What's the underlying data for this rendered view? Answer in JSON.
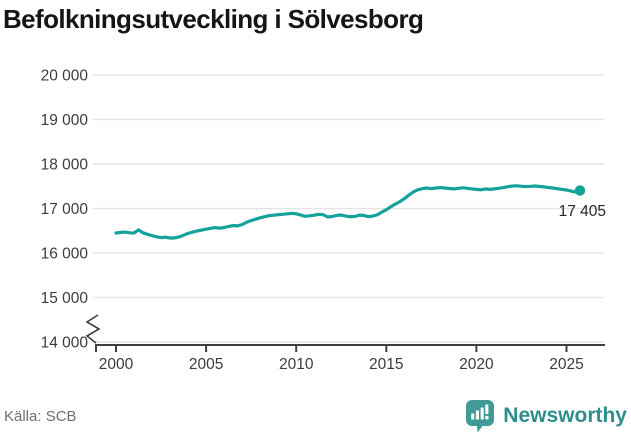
{
  "title": "Befolkningsutveckling i Sölvesborg",
  "source": "Källa: SCB",
  "logo": {
    "name": "Newsworthy",
    "icon": "newsworthy-speech-bubble-bars-icon"
  },
  "colors": {
    "line": "#14a29a",
    "marker": "#14a29a",
    "grid": "#e4e4e4",
    "axis": "#3f3f3f",
    "tick_label": "#3c3c3c",
    "annotation": "#262626",
    "title": "#151515",
    "source_text": "#6f6f6f",
    "logo_icon": "#419a98",
    "logo_text": "#2e8e8c"
  },
  "chart_data": {
    "type": "line",
    "title": "Befolkningsutveckling i Sölvesborg",
    "xlabel": "",
    "ylabel": "",
    "grid": "horizontal",
    "axis_break_bottom": true,
    "ylim": [
      14000,
      20000
    ],
    "xlim": [
      1998.7,
      2027.2
    ],
    "y_axis": {
      "ticks": [
        14000,
        15000,
        16000,
        17000,
        18000,
        19000,
        20000
      ],
      "labels": [
        "14 000",
        "15 000",
        "16 000",
        "17 000",
        "18 000",
        "19 000",
        "20 000"
      ]
    },
    "x_axis": {
      "ticks": [
        2000,
        2005,
        2010,
        2015,
        2020,
        2025
      ],
      "labels": [
        "2000",
        "2005",
        "2010",
        "2015",
        "2020",
        "2025"
      ]
    },
    "annotation": {
      "text": "17 405",
      "year": 2025.75,
      "value": 17405
    },
    "series": [
      {
        "name": "Befolkning",
        "points": [
          [
            2000.0,
            16450
          ],
          [
            2000.25,
            16460
          ],
          [
            2000.5,
            16470
          ],
          [
            2000.75,
            16455
          ],
          [
            2001.0,
            16450
          ],
          [
            2001.25,
            16520
          ],
          [
            2001.5,
            16455
          ],
          [
            2001.75,
            16420
          ],
          [
            2002.0,
            16390
          ],
          [
            2002.25,
            16365
          ],
          [
            2002.5,
            16345
          ],
          [
            2002.75,
            16355
          ],
          [
            2003.0,
            16335
          ],
          [
            2003.25,
            16340
          ],
          [
            2003.5,
            16360
          ],
          [
            2003.75,
            16400
          ],
          [
            2004.0,
            16440
          ],
          [
            2004.25,
            16470
          ],
          [
            2004.5,
            16495
          ],
          [
            2004.75,
            16515
          ],
          [
            2005.0,
            16535
          ],
          [
            2005.25,
            16555
          ],
          [
            2005.5,
            16570
          ],
          [
            2005.75,
            16560
          ],
          [
            2006.0,
            16570
          ],
          [
            2006.25,
            16595
          ],
          [
            2006.5,
            16615
          ],
          [
            2006.75,
            16610
          ],
          [
            2007.0,
            16640
          ],
          [
            2007.25,
            16690
          ],
          [
            2007.5,
            16730
          ],
          [
            2007.75,
            16760
          ],
          [
            2008.0,
            16790
          ],
          [
            2008.25,
            16815
          ],
          [
            2008.5,
            16840
          ],
          [
            2008.75,
            16850
          ],
          [
            2009.0,
            16860
          ],
          [
            2009.25,
            16870
          ],
          [
            2009.5,
            16880
          ],
          [
            2009.75,
            16890
          ],
          [
            2010.0,
            16880
          ],
          [
            2010.25,
            16855
          ],
          [
            2010.5,
            16825
          ],
          [
            2010.75,
            16835
          ],
          [
            2011.0,
            16850
          ],
          [
            2011.25,
            16870
          ],
          [
            2011.5,
            16860
          ],
          [
            2011.75,
            16810
          ],
          [
            2012.0,
            16820
          ],
          [
            2012.25,
            16845
          ],
          [
            2012.5,
            16855
          ],
          [
            2012.75,
            16830
          ],
          [
            2013.0,
            16815
          ],
          [
            2013.25,
            16820
          ],
          [
            2013.5,
            16850
          ],
          [
            2013.75,
            16845
          ],
          [
            2014.0,
            16815
          ],
          [
            2014.25,
            16830
          ],
          [
            2014.5,
            16860
          ],
          [
            2014.75,
            16920
          ],
          [
            2015.0,
            16970
          ],
          [
            2015.25,
            17040
          ],
          [
            2015.5,
            17100
          ],
          [
            2015.75,
            17155
          ],
          [
            2016.0,
            17220
          ],
          [
            2016.25,
            17300
          ],
          [
            2016.5,
            17370
          ],
          [
            2016.75,
            17420
          ],
          [
            2017.0,
            17445
          ],
          [
            2017.25,
            17460
          ],
          [
            2017.5,
            17445
          ],
          [
            2017.75,
            17460
          ],
          [
            2018.0,
            17470
          ],
          [
            2018.25,
            17460
          ],
          [
            2018.5,
            17450
          ],
          [
            2018.75,
            17440
          ],
          [
            2019.0,
            17455
          ],
          [
            2019.25,
            17465
          ],
          [
            2019.5,
            17455
          ],
          [
            2019.75,
            17440
          ],
          [
            2020.0,
            17430
          ],
          [
            2020.25,
            17420
          ],
          [
            2020.5,
            17440
          ],
          [
            2020.75,
            17430
          ],
          [
            2021.0,
            17440
          ],
          [
            2021.25,
            17455
          ],
          [
            2021.5,
            17470
          ],
          [
            2021.75,
            17490
          ],
          [
            2022.0,
            17505
          ],
          [
            2022.25,
            17510
          ],
          [
            2022.5,
            17500
          ],
          [
            2022.75,
            17495
          ],
          [
            2023.0,
            17500
          ],
          [
            2023.25,
            17505
          ],
          [
            2023.5,
            17495
          ],
          [
            2023.75,
            17485
          ],
          [
            2024.0,
            17470
          ],
          [
            2024.25,
            17460
          ],
          [
            2024.5,
            17445
          ],
          [
            2024.75,
            17430
          ],
          [
            2025.0,
            17415
          ],
          [
            2025.25,
            17390
          ],
          [
            2025.5,
            17370
          ],
          [
            2025.75,
            17405
          ]
        ]
      }
    ]
  }
}
